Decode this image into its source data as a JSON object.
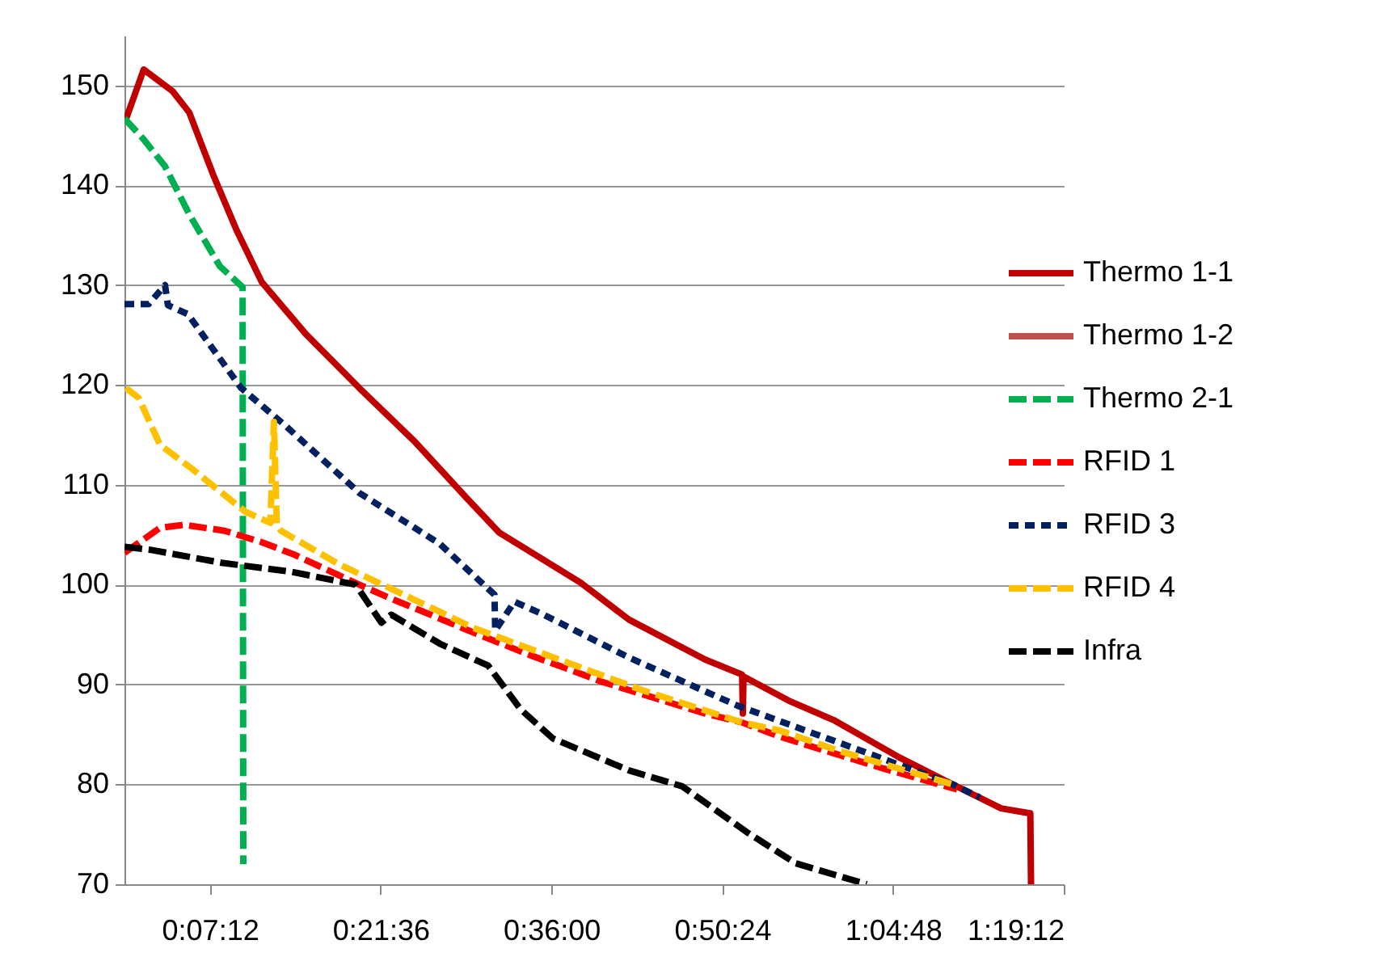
{
  "chart_data": {
    "type": "line",
    "xlim": [
      0,
      1.32
    ],
    "ylim": [
      70,
      155
    ],
    "xticks": [
      {
        "value": 0.12,
        "label": "0:07:12"
      },
      {
        "value": 0.36,
        "label": "0:21:36"
      },
      {
        "value": 0.6,
        "label": "0:36:00"
      },
      {
        "value": 0.84,
        "label": "0:50:24"
      },
      {
        "value": 1.08,
        "label": "1:04:48"
      },
      {
        "value": 1.32,
        "label": "1:19:12"
      }
    ],
    "yticks": [
      70,
      80,
      90,
      100,
      110,
      120,
      130,
      140,
      150
    ],
    "grid": "y",
    "legend": "right",
    "series": [
      {
        "name": "Thermo 1-1",
        "color": "#c00000",
        "line_style": "solid",
        "x": [
          0,
          0.027,
          0.068,
          0.091,
          0.125,
          0.157,
          0.193,
          0.255,
          0.33,
          0.407,
          0.482,
          0.527,
          0.641,
          0.709,
          0.816,
          0.868,
          0.869,
          0.87,
          0.936,
          0.998,
          1.089,
          1.164,
          1.232,
          1.273,
          1.274
        ],
        "values": [
          146.2,
          151.6,
          149.4,
          147.3,
          141,
          135.6,
          130.3,
          125.1,
          119.7,
          114.4,
          108.6,
          105.2,
          100.2,
          96.5,
          92.5,
          91,
          87.1,
          90.8,
          88.3,
          86.4,
          82.7,
          80,
          77.6,
          77.1,
          70
        ]
      },
      {
        "name": "Thermo 1-2",
        "color": "#c0504d",
        "line_style": "solid"
      },
      {
        "name": "Thermo 2-1",
        "color": "#00b050",
        "line_style": "dashed",
        "x": [
          0,
          0.027,
          0.057,
          0.091,
          0.134,
          0.166,
          0.167
        ],
        "values": [
          146.7,
          144.6,
          141.9,
          137.1,
          131.9,
          129.8,
          72
        ]
      },
      {
        "name": "RFID 1",
        "color": "#ff0000",
        "line_style": "dashed",
        "x": [
          0,
          0.05,
          0.084,
          0.141,
          0.191,
          0.239,
          0.33,
          0.375,
          0.43,
          0.477,
          0.568,
          0.618,
          0.67,
          0.816,
          0.868,
          0.92,
          1.066,
          1.17
        ],
        "values": [
          103.2,
          105.7,
          106,
          105.4,
          104.3,
          103,
          100,
          98.6,
          97,
          95.6,
          93,
          91.7,
          90.3,
          87.1,
          86.2,
          84.8,
          81.6,
          79.5
        ]
      },
      {
        "name": "RFID 3",
        "color": "#002060",
        "line_style": "dotted",
        "x": [
          0,
          0.034,
          0.057,
          0.061,
          0.089,
          0.164,
          0.225,
          0.33,
          0.443,
          0.52,
          0.521,
          0.548,
          0.589,
          0.709,
          0.861,
          1.011,
          1.164,
          1.202
        ],
        "values": [
          128.1,
          128.1,
          130,
          128,
          127.1,
          119.7,
          116,
          109.2,
          104.1,
          99,
          95.4,
          98.3,
          97,
          92.7,
          87.9,
          84,
          80,
          78.7
        ]
      },
      {
        "name": "RFID 4",
        "color": "#ffc000",
        "line_style": "dashed",
        "x": [
          0.002,
          0.02,
          0.05,
          0.095,
          0.17,
          0.205,
          0.21,
          0.214,
          0.22,
          0.232,
          0.3,
          0.443,
          0.489,
          0.573,
          0.634,
          0.725,
          0.868,
          0.92,
          1.011,
          1.164
        ],
        "values": [
          119.7,
          118.7,
          114,
          111.6,
          107.3,
          106.2,
          116.3,
          106,
          105.4,
          104.9,
          102.1,
          97.3,
          95.7,
          93.5,
          91.9,
          89.5,
          86.2,
          85.4,
          83.2,
          80
        ]
      },
      {
        "name": "Infra",
        "color": "#000000",
        "line_style": "dashed",
        "x": [
          0,
          0.036,
          0.136,
          0.234,
          0.325,
          0.361,
          0.375,
          0.443,
          0.511,
          0.557,
          0.602,
          0.709,
          0.784,
          0.875,
          0.943,
          1.043
        ],
        "values": [
          103.8,
          103.5,
          102.2,
          101.3,
          100,
          96.2,
          97,
          94.1,
          91.9,
          87.5,
          84.6,
          81.4,
          79.8,
          75.2,
          72.1,
          70
        ]
      }
    ]
  }
}
